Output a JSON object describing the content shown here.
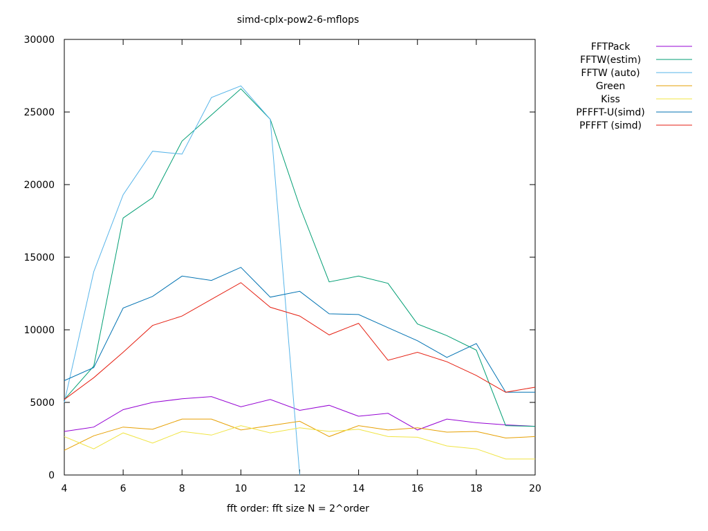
{
  "chart_data": {
    "type": "line",
    "title": "simd-cplx-pow2-6-mflops",
    "xlabel": "fft order: fft size N = 2^order",
    "ylabel": "",
    "xlim": [
      4,
      20
    ],
    "ylim": [
      0,
      30000
    ],
    "xticks": [
      4,
      6,
      8,
      10,
      12,
      14,
      16,
      18,
      20
    ],
    "yticks": [
      0,
      5000,
      10000,
      15000,
      20000,
      25000,
      30000
    ],
    "grid": false,
    "legend_position": "outside-right-top",
    "series": [
      {
        "name": "FFTPack",
        "color": "#9400d3",
        "x": [
          4,
          5,
          6,
          7,
          8,
          9,
          10,
          11,
          12,
          13,
          14,
          15,
          16,
          17,
          18,
          19,
          20
        ],
        "y": [
          3000,
          3300,
          4500,
          5000,
          5250,
          5400,
          4700,
          5200,
          4450,
          4800,
          4050,
          4250,
          3100,
          3850,
          3600,
          3450,
          3350
        ]
      },
      {
        "name": "FFTW(estim)",
        "color": "#009e73",
        "x": [
          4,
          5,
          6,
          7,
          8,
          9,
          10,
          11,
          12,
          13,
          14,
          15,
          16,
          17,
          18,
          19,
          20
        ],
        "y": [
          5200,
          7500,
          17700,
          19100,
          23000,
          24800,
          26600,
          24500,
          18500,
          13300,
          13700,
          13200,
          10400,
          9600,
          8600,
          3400,
          3350
        ]
      },
      {
        "name": "FFTW (auto)",
        "color": "#56b4e9",
        "x": [
          4,
          5,
          6,
          7,
          8,
          9,
          10,
          11,
          12
        ],
        "y": [
          5000,
          14000,
          19300,
          22300,
          22100,
          26000,
          26800,
          24500,
          0
        ]
      },
      {
        "name": "Green",
        "color": "#e69f00",
        "x": [
          4,
          5,
          6,
          7,
          8,
          9,
          10,
          11,
          12,
          13,
          14,
          15,
          16,
          17,
          18,
          19,
          20
        ],
        "y": [
          1700,
          2700,
          3300,
          3150,
          3850,
          3850,
          3100,
          3400,
          3700,
          2650,
          3400,
          3100,
          3250,
          2950,
          3000,
          2550,
          2650
        ]
      },
      {
        "name": "Kiss",
        "color": "#f0e442",
        "x": [
          4,
          5,
          6,
          7,
          8,
          9,
          10,
          11,
          12,
          13,
          14,
          15,
          16,
          17,
          18,
          19,
          20
        ],
        "y": [
          2650,
          1800,
          2900,
          2200,
          3000,
          2750,
          3400,
          2900,
          3250,
          3000,
          3150,
          2650,
          2600,
          2000,
          1800,
          1100,
          1100
        ]
      },
      {
        "name": "PFFFT-U(simd)",
        "color": "#0072b2",
        "x": [
          4,
          5,
          6,
          7,
          8,
          9,
          10,
          11,
          12,
          13,
          14,
          15,
          16,
          17,
          18,
          19,
          20
        ],
        "y": [
          6500,
          7400,
          11500,
          12300,
          13700,
          13400,
          14300,
          12250,
          12650,
          11100,
          11050,
          10150,
          9250,
          8100,
          9050,
          5700,
          5700
        ]
      },
      {
        "name": "PFFFT (simd)",
        "color": "#e51e10",
        "x": [
          4,
          5,
          6,
          7,
          8,
          9,
          10,
          11,
          12,
          13,
          14,
          15,
          16,
          17,
          18,
          19,
          20
        ],
        "y": [
          5200,
          6700,
          8450,
          10300,
          10950,
          12100,
          13250,
          11550,
          10950,
          9650,
          10450,
          7900,
          8450,
          7800,
          6850,
          5700,
          6050
        ]
      }
    ]
  }
}
